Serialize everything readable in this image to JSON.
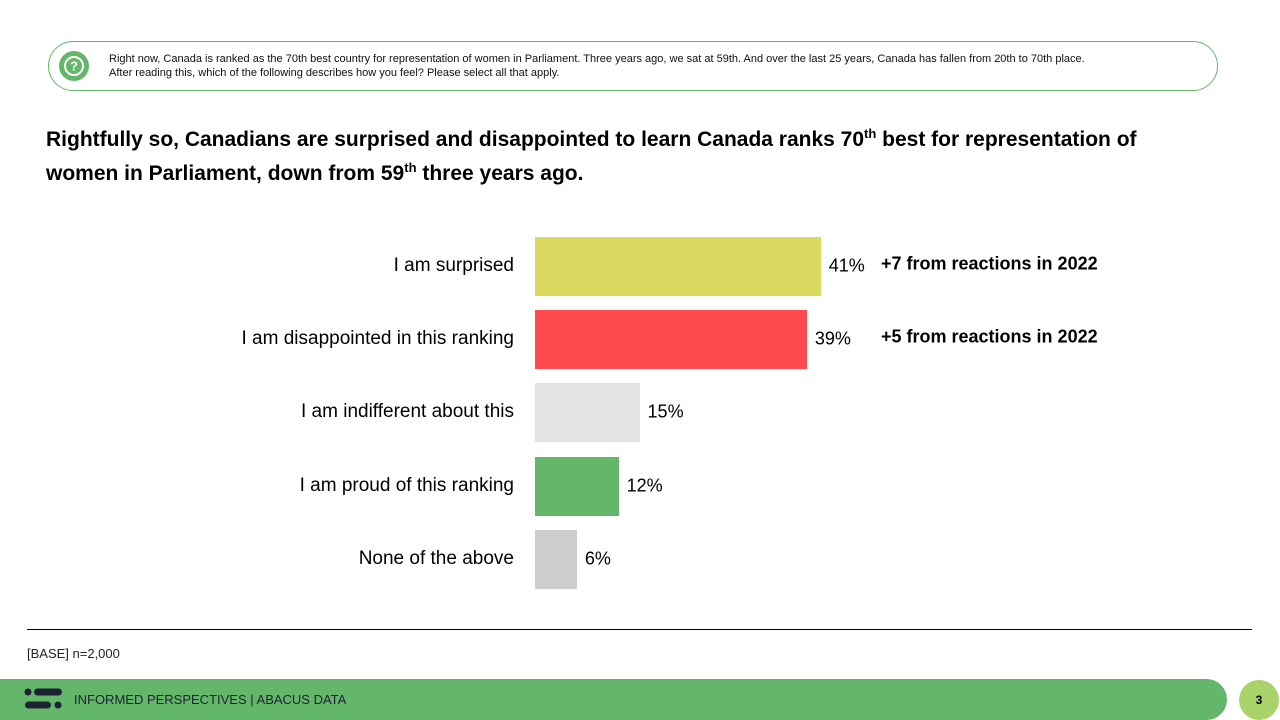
{
  "question": {
    "line1": "Right now, Canada is ranked as the 70th best country for representation of women in Parliament. Three years ago, we sat at 59th. And over the last 25 years, Canada has fallen from 20th to 70th place.",
    "line2": "After reading this, which of  the following describes how you feel? Please select all that apply."
  },
  "title": {
    "part1": "Rightfully so, Canadians are surprised and disappointed to learn Canada ranks 70",
    "sup1": "th",
    "part2": " best for representation of women in Parliament, down from 59",
    "sup2": "th",
    "part3": " three years ago."
  },
  "chart_data": {
    "type": "bar",
    "orientation": "horizontal",
    "categories": [
      "I am surprised",
      "I am disappointed in this ranking",
      "I am indifferent about this",
      "I am proud of this ranking",
      "None of the above"
    ],
    "values": [
      41,
      39,
      15,
      12,
      6
    ],
    "value_labels": [
      "41%",
      "39%",
      "15%",
      "12%",
      "6%"
    ],
    "colors": [
      "#dada60",
      "#ff4a50",
      "#e3e4e3",
      "#64b66a",
      "#cdcdcd"
    ],
    "annotations": [
      "+7 from reactions in 2022",
      "+5 from reactions in 2022",
      "",
      "",
      ""
    ],
    "xlim": [
      0,
      100
    ]
  },
  "base": "[BASE] n=2,000",
  "footer": {
    "text": "INFORMED PERSPECTIVES | ABACUS DATA",
    "page": "3"
  }
}
